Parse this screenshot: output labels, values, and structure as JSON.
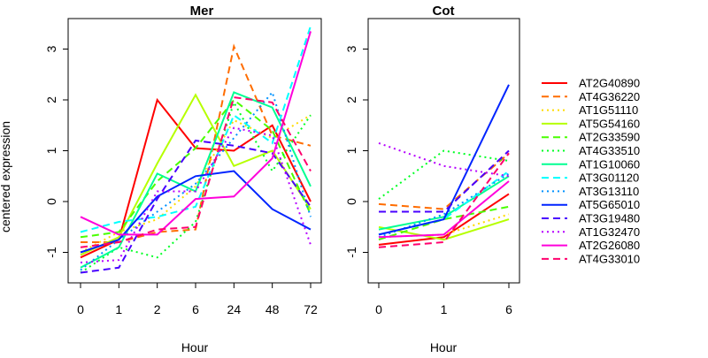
{
  "ylabel": "centered expression",
  "xlabel": "Hour",
  "chart_data": [
    {
      "type": "line",
      "title": "Mer",
      "xlabel": "Hour",
      "ylabel": "centered expression",
      "categories": [
        "0",
        "1",
        "2",
        "6",
        "24",
        "48",
        "72"
      ],
      "ylim": [
        -1.6,
        3.6
      ],
      "yticks": [
        -1,
        0,
        1,
        2,
        3
      ],
      "series": [
        {
          "name": "AT2G40890",
          "values": [
            -1.1,
            -0.75,
            2.0,
            1.05,
            1.0,
            1.5,
            0.0
          ]
        },
        {
          "name": "AT4G36220",
          "values": [
            -0.8,
            -0.8,
            -0.6,
            -0.55,
            3.05,
            1.3,
            1.1
          ]
        },
        {
          "name": "AT1G51110",
          "values": [
            -1.0,
            -0.6,
            -0.35,
            0.3,
            1.6,
            1.25,
            1.7
          ]
        },
        {
          "name": "AT5G54160",
          "values": [
            -1.05,
            -0.7,
            0.75,
            2.1,
            0.7,
            1.0,
            -0.15
          ]
        },
        {
          "name": "AT2G33590",
          "values": [
            -0.7,
            -0.6,
            0.4,
            1.05,
            2.0,
            1.4,
            -0.25
          ]
        },
        {
          "name": "AT4G33510",
          "values": [
            -1.4,
            -0.9,
            -1.1,
            -0.4,
            1.95,
            0.6,
            1.7
          ]
        },
        {
          "name": "AT1G10060",
          "values": [
            -1.3,
            -0.9,
            0.55,
            0.2,
            2.15,
            1.85,
            0.3
          ]
        },
        {
          "name": "AT3G01120",
          "values": [
            -0.6,
            -0.4,
            -0.3,
            -0.1,
            1.7,
            1.15,
            3.45
          ]
        },
        {
          "name": "AT3G13110",
          "values": [
            -1.35,
            -0.75,
            -0.2,
            0.35,
            1.25,
            2.15,
            -0.3
          ]
        },
        {
          "name": "AT5G65010",
          "values": [
            -1.0,
            -0.75,
            0.1,
            0.5,
            0.6,
            -0.15,
            -0.55
          ]
        },
        {
          "name": "AT3G19480",
          "values": [
            -1.4,
            -1.3,
            0.05,
            1.2,
            1.1,
            0.95,
            -0.1
          ]
        },
        {
          "name": "AT1G32470",
          "values": [
            -1.2,
            -1.15,
            0.2,
            0.2,
            1.45,
            1.3,
            -0.85
          ]
        },
        {
          "name": "AT2G26080",
          "values": [
            -0.3,
            -0.65,
            -0.65,
            0.05,
            0.1,
            0.85,
            3.35
          ]
        },
        {
          "name": "AT4G33010",
          "values": [
            -0.9,
            -0.8,
            -0.55,
            -0.5,
            2.05,
            1.95,
            0.6
          ]
        }
      ]
    },
    {
      "type": "line",
      "title": "Cot",
      "xlabel": "Hour",
      "categories": [
        "0",
        "1",
        "6"
      ],
      "ylim": [
        -1.6,
        3.6
      ],
      "yticks": [
        -1,
        0,
        1,
        2,
        3
      ],
      "series": [
        {
          "name": "AT2G40890",
          "values": [
            -0.85,
            -0.7,
            0.15
          ]
        },
        {
          "name": "AT4G36220",
          "values": [
            -0.05,
            -0.15,
            0.95
          ]
        },
        {
          "name": "AT1G51110",
          "values": [
            -0.7,
            -0.65,
            -0.25
          ]
        },
        {
          "name": "AT5G54160",
          "values": [
            -0.5,
            -0.75,
            -0.35
          ]
        },
        {
          "name": "AT2G33590",
          "values": [
            -0.75,
            -0.35,
            -0.1
          ]
        },
        {
          "name": "AT4G33510",
          "values": [
            0.05,
            1.0,
            0.8
          ]
        },
        {
          "name": "AT1G10060",
          "values": [
            -0.55,
            -0.3,
            0.5
          ]
        },
        {
          "name": "AT3G01120",
          "values": [
            -0.65,
            -0.35,
            0.6
          ]
        },
        {
          "name": "AT3G13110",
          "values": [
            -0.7,
            -0.25,
            0.55
          ]
        },
        {
          "name": "AT5G65010",
          "values": [
            -0.65,
            -0.35,
            2.3
          ]
        },
        {
          "name": "AT3G19480",
          "values": [
            -0.2,
            -0.2,
            1.0
          ]
        },
        {
          "name": "AT1G32470",
          "values": [
            1.15,
            0.7,
            0.5
          ]
        },
        {
          "name": "AT2G26080",
          "values": [
            -0.7,
            -0.65,
            0.4
          ]
        },
        {
          "name": "AT4G33010",
          "values": [
            -0.9,
            -0.8,
            0.95
          ]
        }
      ]
    }
  ],
  "legend": {
    "position": "right",
    "items": [
      {
        "name": "AT2G40890",
        "color": "#FF0000",
        "dash": "solid"
      },
      {
        "name": "AT4G36220",
        "color": "#FF6D00",
        "dash": "dashed"
      },
      {
        "name": "AT1G51110",
        "color": "#FFDB00",
        "dash": "dotted"
      },
      {
        "name": "AT5G54160",
        "color": "#B6FF00",
        "dash": "solid"
      },
      {
        "name": "AT2G33590",
        "color": "#49FF00",
        "dash": "dashed"
      },
      {
        "name": "AT4G33510",
        "color": "#00FF24",
        "dash": "dotted"
      },
      {
        "name": "AT1G10060",
        "color": "#00FF92",
        "dash": "solid"
      },
      {
        "name": "AT3G01120",
        "color": "#00FFFF",
        "dash": "dashed"
      },
      {
        "name": "AT3G13110",
        "color": "#0092FF",
        "dash": "dotted"
      },
      {
        "name": "AT5G65010",
        "color": "#0024FF",
        "dash": "solid"
      },
      {
        "name": "AT3G19480",
        "color": "#4900FF",
        "dash": "dashed"
      },
      {
        "name": "AT1G32470",
        "color": "#B600FF",
        "dash": "dotted"
      },
      {
        "name": "AT2G26080",
        "color": "#FF00DB",
        "dash": "solid"
      },
      {
        "name": "AT4G33010",
        "color": "#FF006D",
        "dash": "dashed"
      }
    ]
  }
}
